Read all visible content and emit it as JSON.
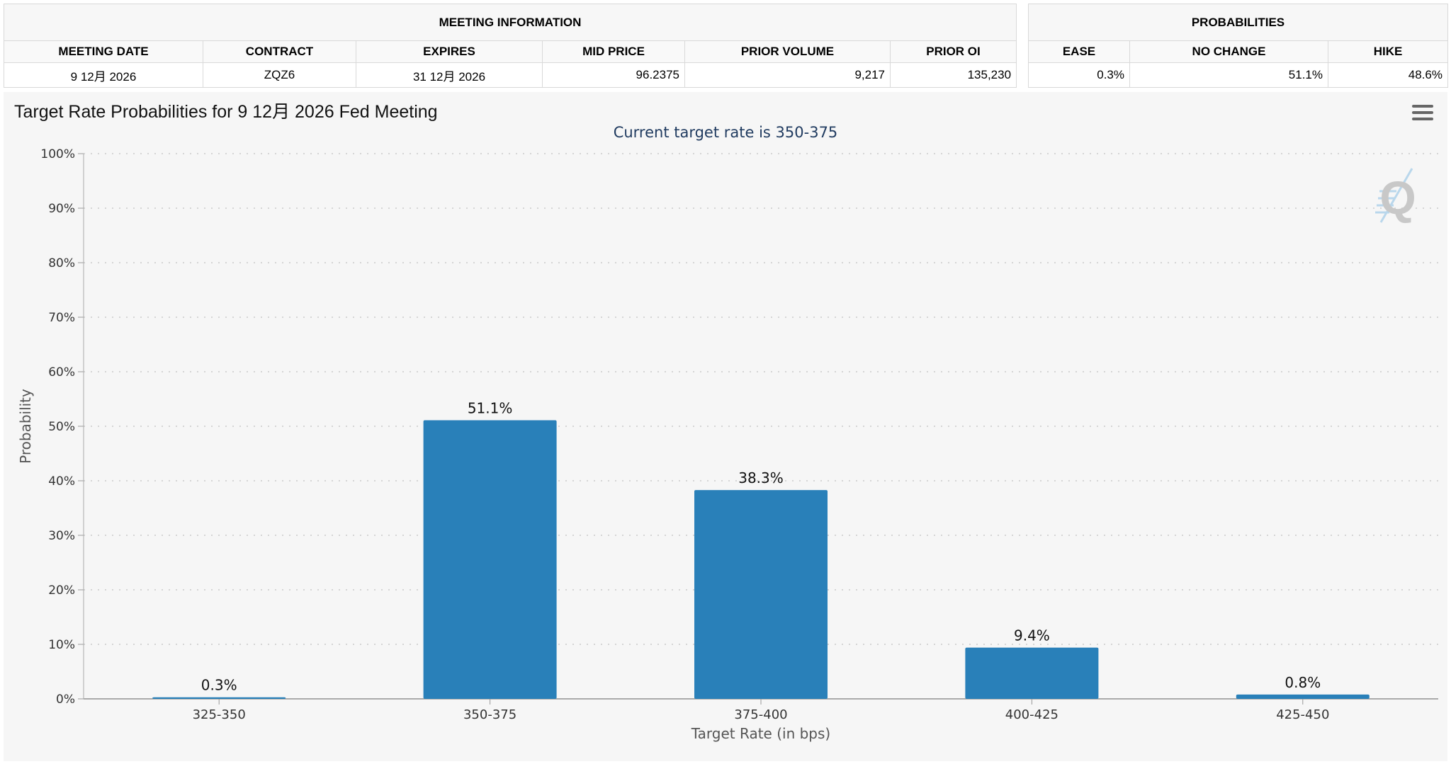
{
  "meeting_info": {
    "title": "MEETING INFORMATION",
    "headers": [
      "MEETING DATE",
      "CONTRACT",
      "EXPIRES",
      "MID PRICE",
      "PRIOR VOLUME",
      "PRIOR OI"
    ],
    "row": [
      "9 12月 2026",
      "ZQZ6",
      "31 12月 2026",
      "96.2375",
      "9,217",
      "135,230"
    ]
  },
  "probabilities": {
    "title": "PROBABILITIES",
    "headers": [
      "EASE",
      "NO CHANGE",
      "HIKE"
    ],
    "row": [
      "0.3%",
      "51.1%",
      "48.6%"
    ]
  },
  "chart": {
    "menu_icon": "hamburger-menu-icon",
    "watermark_letter": "Q"
  },
  "chart_data": {
    "type": "bar",
    "title": "Target Rate Probabilities for 9 12月 2026 Fed Meeting",
    "subtitle": "Current target rate is 350-375",
    "xlabel": "Target Rate (in bps)",
    "ylabel": "Probability",
    "categories": [
      "325-350",
      "350-375",
      "375-400",
      "400-425",
      "425-450"
    ],
    "values": [
      0.3,
      51.1,
      38.3,
      9.4,
      0.8
    ],
    "data_labels": [
      "0.3%",
      "51.1%",
      "38.3%",
      "9.4%",
      "0.8%"
    ],
    "ylim": [
      0,
      100
    ],
    "yticks": [
      "0%",
      "10%",
      "20%",
      "30%",
      "40%",
      "50%",
      "60%",
      "70%",
      "80%",
      "90%",
      "100%"
    ],
    "grid": true,
    "legend": "none",
    "colors": {
      "bar": "#2980b9",
      "subtitle": "#1f3a5f",
      "grid": "#d5d5d5",
      "background": "#f6f6f6"
    }
  }
}
